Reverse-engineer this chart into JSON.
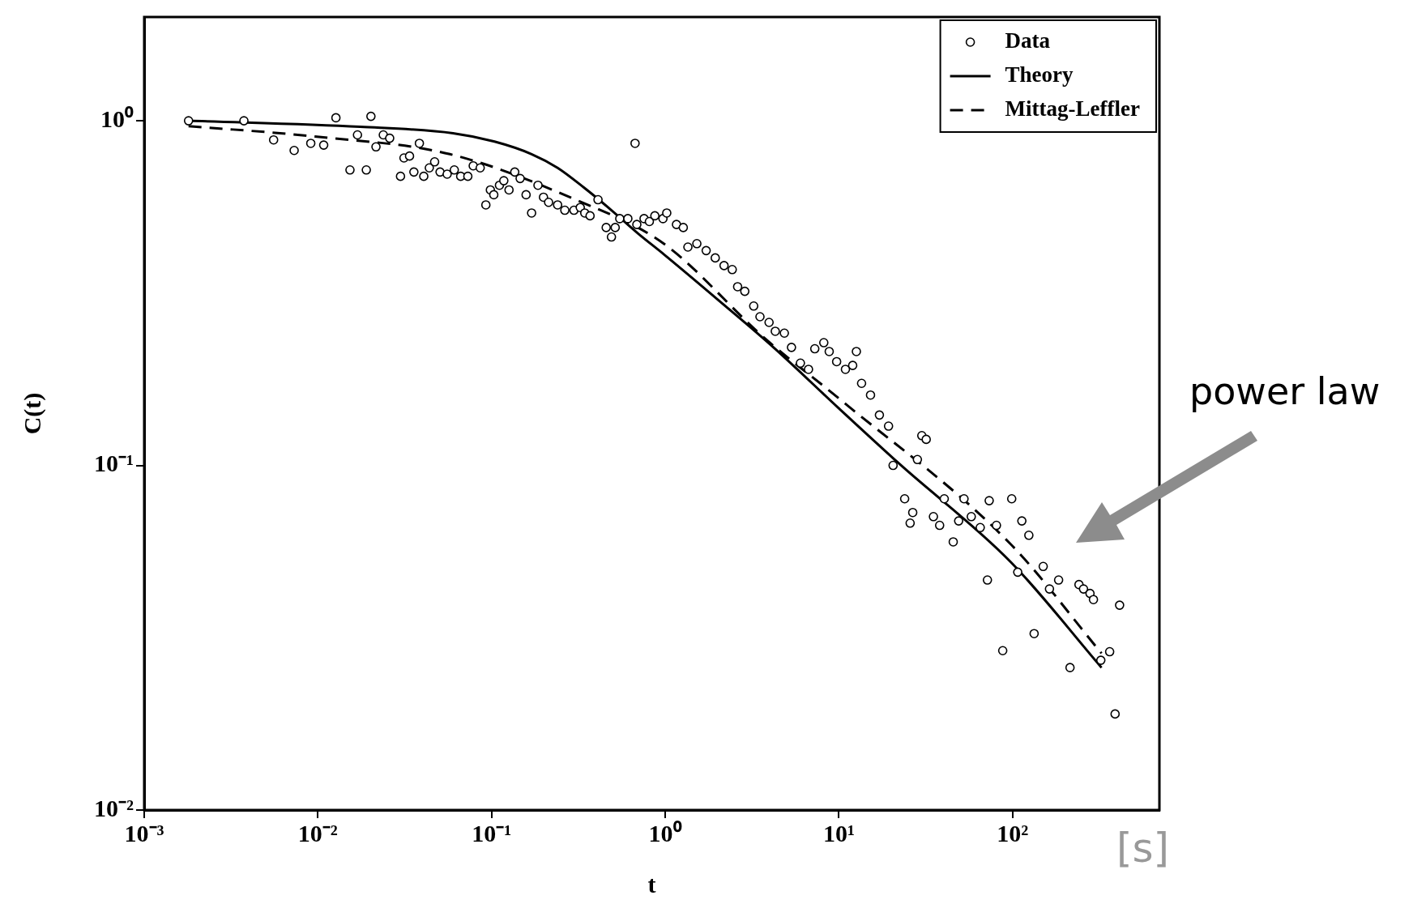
{
  "chart_data": {
    "type": "scatter",
    "xlabel": "t",
    "ylabel": "C(t)",
    "log": "xy",
    "xlim": [
      0.001,
      700
    ],
    "ylim": [
      0.01,
      2
    ],
    "xticks": [
      {
        "value": 0.001,
        "label": "10⁻³"
      },
      {
        "value": 0.01,
        "label": "10⁻²"
      },
      {
        "value": 0.1,
        "label": "10⁻¹"
      },
      {
        "value": 1,
        "label": "10⁰"
      },
      {
        "value": 10,
        "label": "10¹"
      },
      {
        "value": 100,
        "label": "10²"
      }
    ],
    "yticks": [
      {
        "value": 0.01,
        "label": "10⁻²"
      },
      {
        "value": 0.1,
        "label": "10⁻¹"
      },
      {
        "value": 1,
        "label": "10⁰"
      }
    ],
    "legend": "top right",
    "annotations": [
      "power law",
      "[s]"
    ],
    "series": [
      {
        "name": "Data",
        "marker": "circle",
        "color": "#000000",
        "x": [
          0.0018,
          0.00375,
          0.00556,
          0.0073,
          0.0091,
          0.0108,
          0.0127,
          0.0153,
          0.0169,
          0.019,
          0.0202,
          0.0216,
          0.0238,
          0.0259,
          0.0299,
          0.0313,
          0.0337,
          0.0357,
          0.0384,
          0.0407,
          0.0438,
          0.047,
          0.0505,
          0.0555,
          0.061,
          0.0664,
          0.073,
          0.0784,
          0.086,
          0.0927,
          0.0984,
          0.103,
          0.111,
          0.1176,
          0.126,
          0.136,
          0.146,
          0.158,
          0.17,
          0.185,
          0.199,
          0.213,
          0.24,
          0.264,
          0.298,
          0.324,
          0.344,
          0.369,
          0.41,
          0.457,
          0.49,
          0.515,
          0.547,
          0.609,
          0.67,
          0.686,
          0.755,
          0.81,
          0.871,
          0.97,
          1.02,
          1.16,
          1.27,
          1.35,
          1.52,
          1.72,
          1.94,
          2.18,
          2.43,
          2.61,
          2.87,
          3.23,
          3.51,
          3.96,
          4.3,
          4.85,
          5.33,
          6.0,
          6.68,
          7.26,
          8.18,
          8.79,
          9.7,
          10.9,
          12.0,
          12.6,
          13.5,
          15.2,
          17.1,
          19.3,
          20.5,
          23.9,
          25.7,
          26.6,
          28.3,
          30,
          31.8,
          35,
          38,
          40.4,
          45.5,
          48.9,
          52.5,
          57.8,
          65.1,
          71.6,
          73.3,
          80.7,
          87.7,
          98.8,
          107,
          113,
          124,
          133,
          150,
          163,
          184,
          214,
          241,
          256,
          279,
          292,
          322,
          362,
          389,
          413
        ],
        "values": [
          1.0,
          1.0,
          0.88,
          0.82,
          0.86,
          0.85,
          1.02,
          0.72,
          0.91,
          0.72,
          1.03,
          0.84,
          0.91,
          0.89,
          0.69,
          0.78,
          0.79,
          0.71,
          0.86,
          0.69,
          0.73,
          0.76,
          0.71,
          0.7,
          0.72,
          0.69,
          0.69,
          0.74,
          0.73,
          0.57,
          0.63,
          0.61,
          0.65,
          0.67,
          0.63,
          0.71,
          0.68,
          0.61,
          0.54,
          0.65,
          0.6,
          0.58,
          0.57,
          0.55,
          0.55,
          0.56,
          0.54,
          0.53,
          0.59,
          0.49,
          0.46,
          0.49,
          0.52,
          0.52,
          0.86,
          0.5,
          0.52,
          0.51,
          0.53,
          0.52,
          0.54,
          0.5,
          0.49,
          0.43,
          0.44,
          0.42,
          0.4,
          0.38,
          0.37,
          0.33,
          0.32,
          0.29,
          0.27,
          0.26,
          0.245,
          0.242,
          0.22,
          0.198,
          0.19,
          0.218,
          0.227,
          0.214,
          0.2,
          0.19,
          0.195,
          0.214,
          0.173,
          0.16,
          0.14,
          0.13,
          0.1,
          0.08,
          0.068,
          0.073,
          0.104,
          0.122,
          0.119,
          0.071,
          0.067,
          0.08,
          0.06,
          0.069,
          0.08,
          0.071,
          0.066,
          0.0465,
          0.079,
          0.067,
          0.029,
          0.08,
          0.049,
          0.069,
          0.0627,
          0.0325,
          0.0509,
          0.0438,
          0.0465,
          0.0259,
          0.0451,
          0.0438,
          0.0425,
          0.0408,
          0.0272,
          0.0288,
          0.019,
          0.0393
        ]
      },
      {
        "name": "Theory",
        "type": "line",
        "marker": "none",
        "line_style": "solid",
        "color": "#000000",
        "x": [
          0.0018,
          0.0175,
          0.06,
          0.104,
          0.17,
          0.24,
          0.34,
          0.49,
          0.7,
          0.98,
          2.05,
          4.2,
          9.9,
          22.3,
          97.7,
          325
        ],
        "values": [
          1.0,
          0.96,
          0.92,
          0.87,
          0.8,
          0.73,
          0.64,
          0.55,
          0.47,
          0.41,
          0.3,
          0.22,
          0.147,
          0.101,
          0.0524,
          0.0259
        ]
      },
      {
        "name": "Mittag-Leffler",
        "type": "line",
        "marker": "none",
        "line_style": "dashed",
        "color": "#000000",
        "x": [
          0.0018,
          0.0096,
          0.0575,
          0.305,
          0.98,
          3.73,
          9.9,
          97.7,
          325
        ],
        "values": [
          0.965,
          0.9,
          0.8,
          0.59,
          0.44,
          0.234,
          0.157,
          0.059,
          0.0285
        ]
      }
    ]
  }
}
